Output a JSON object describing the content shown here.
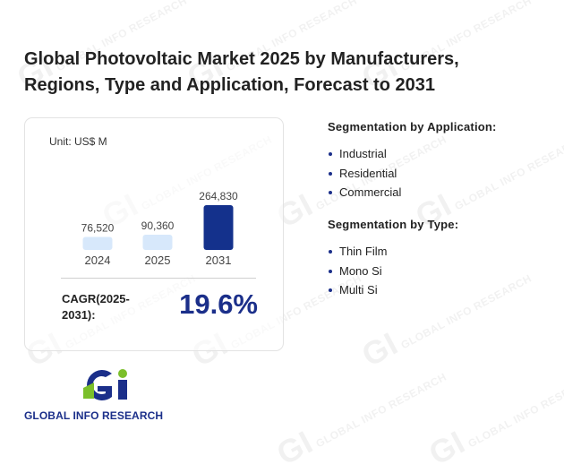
{
  "title": "Global Photovoltaic Market 2025 by Manufacturers, Regions, Type and Application, Forecast to 2031",
  "unit": "Unit: US$ M",
  "chart_data": {
    "type": "bar",
    "categories": [
      "2024",
      "2025",
      "2031"
    ],
    "values": [
      76520,
      90360,
      264830
    ],
    "value_labels": [
      "76,520",
      "90,360",
      "264,830"
    ],
    "colors": [
      "#d7e8fb",
      "#d7e8fb",
      "#14318c"
    ],
    "ylim": [
      0,
      264830
    ],
    "title": "",
    "xlabel": "",
    "ylabel": ""
  },
  "cagr": {
    "label": "CAGR(2025-2031):",
    "value": "19.6%"
  },
  "segments": [
    {
      "title": "Segmentation by Application:",
      "items": [
        "Industrial",
        "Residential",
        "Commercial"
      ]
    },
    {
      "title": "Segmentation by Type:",
      "items": [
        "Thin Film",
        "Mono Si",
        "Multi Si"
      ]
    }
  ],
  "logo": {
    "text": "GLOBAL INFO RESEARCH",
    "primary": "#1b2f8a",
    "accent": "#7bbf2a"
  },
  "watermark": {
    "text": "GLOBAL INFO RESEARCH",
    "mark": "GI"
  }
}
